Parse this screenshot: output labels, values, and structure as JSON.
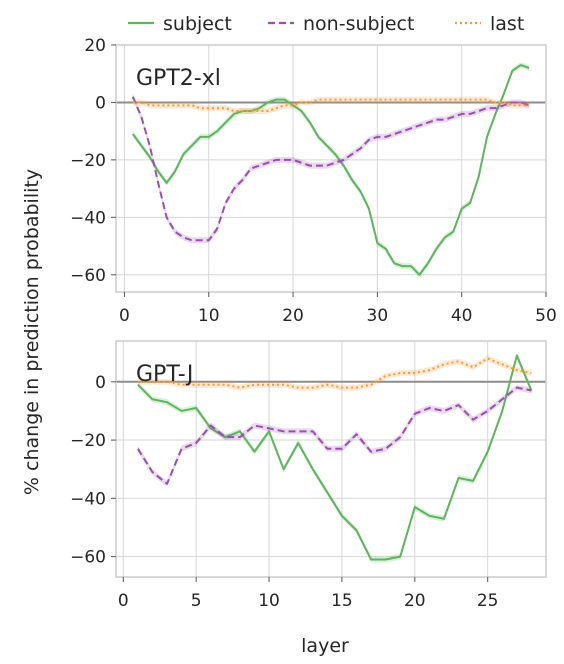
{
  "legend": {
    "entries": [
      {
        "label": "subject",
        "color": "#5db55d",
        "dash": "solid"
      },
      {
        "label": "non-subject",
        "color": "#9b4fb0",
        "dash": "dashed"
      },
      {
        "label": "last",
        "color": "#f59a3c",
        "dash": "dotted"
      }
    ],
    "placement": "top-center"
  },
  "ylabel": "% change in prediction probability",
  "xlabel": "layer",
  "chart_data": [
    {
      "type": "line",
      "title": "GPT2-xl",
      "xlim": [
        -1,
        50
      ],
      "ylim": [
        -66,
        20
      ],
      "xticks": [
        0,
        10,
        20,
        30,
        40,
        50
      ],
      "yticks": [
        -60,
        -40,
        -20,
        0,
        20
      ],
      "grid": true,
      "series": [
        {
          "name": "subject",
          "x": [
            1,
            2,
            3,
            4,
            5,
            6,
            7,
            8,
            9,
            10,
            11,
            12,
            13,
            14,
            15,
            16,
            17,
            18,
            19,
            20,
            21,
            22,
            23,
            24,
            25,
            26,
            27,
            28,
            29,
            30,
            31,
            32,
            33,
            34,
            35,
            36,
            37,
            38,
            39,
            40,
            41,
            42,
            43,
            44,
            45,
            46,
            47,
            48
          ],
          "y": [
            -11,
            -15,
            -19,
            -24,
            -28,
            -24,
            -18,
            -15,
            -12,
            -12,
            -10,
            -7,
            -4,
            -3,
            -3,
            -2,
            0,
            1,
            1,
            -1,
            -3,
            -7,
            -12,
            -15,
            -18,
            -22,
            -27,
            -31,
            -37,
            -49,
            -51,
            -56,
            -57,
            -57,
            -60,
            -56,
            -51,
            -47,
            -45,
            -37,
            -35,
            -26,
            -12,
            -4,
            3,
            11,
            13,
            12
          ]
        },
        {
          "name": "non-subject",
          "x": [
            1,
            2,
            3,
            4,
            5,
            6,
            7,
            8,
            9,
            10,
            11,
            12,
            13,
            14,
            15,
            16,
            17,
            18,
            19,
            20,
            21,
            22,
            23,
            24,
            25,
            26,
            27,
            28,
            29,
            30,
            31,
            32,
            33,
            34,
            35,
            36,
            37,
            38,
            39,
            40,
            41,
            42,
            43,
            44,
            45,
            46,
            47,
            48
          ],
          "y": [
            2,
            -5,
            -15,
            -28,
            -40,
            -45,
            -47,
            -48,
            -48,
            -48,
            -44,
            -35,
            -30,
            -27,
            -23,
            -22,
            -21,
            -20,
            -20,
            -20,
            -21,
            -22,
            -22,
            -22,
            -21,
            -20,
            -18,
            -16,
            -13,
            -12,
            -12,
            -11,
            -10,
            -9,
            -8,
            -7,
            -6,
            -6,
            -5,
            -4,
            -4,
            -3,
            -2,
            -2,
            -1,
            0,
            0,
            -1
          ]
        },
        {
          "name": "last",
          "x": [
            1,
            2,
            3,
            4,
            5,
            6,
            7,
            8,
            9,
            10,
            11,
            12,
            13,
            14,
            15,
            16,
            17,
            18,
            19,
            20,
            21,
            22,
            23,
            24,
            25,
            26,
            27,
            28,
            29,
            30,
            31,
            32,
            33,
            34,
            35,
            36,
            37,
            38,
            39,
            40,
            41,
            42,
            43,
            44,
            45,
            46,
            47,
            48
          ],
          "y": [
            0,
            0,
            -1,
            -1,
            -1,
            -1,
            -1,
            -1,
            -2,
            -2,
            -2,
            -2,
            -3,
            -3,
            -3,
            -3,
            -3,
            -2,
            -1,
            -1,
            0,
            0,
            1,
            1,
            1,
            1,
            1,
            1,
            1,
            1,
            1,
            1,
            1,
            1,
            1,
            1,
            1,
            1,
            1,
            1,
            1,
            1,
            1,
            0,
            0,
            -1,
            -1,
            -1
          ]
        }
      ]
    },
    {
      "type": "line",
      "title": "GPT-J",
      "xlim": [
        -0.5,
        29
      ],
      "ylim": [
        -67,
        14
      ],
      "xticks": [
        0,
        5,
        10,
        15,
        20,
        25
      ],
      "yticks": [
        -60,
        -40,
        -20,
        0
      ],
      "grid": true,
      "series": [
        {
          "name": "subject",
          "x": [
            1,
            2,
            3,
            4,
            5,
            6,
            7,
            8,
            9,
            10,
            11,
            12,
            13,
            14,
            15,
            16,
            17,
            18,
            19,
            20,
            21,
            22,
            23,
            24,
            25,
            26,
            27,
            28
          ],
          "y": [
            -1,
            -6,
            -7,
            -10,
            -9,
            -16,
            -19,
            -17,
            -24,
            -17,
            -30,
            -21,
            -30,
            -38,
            -46,
            -51,
            -61,
            -61,
            -60,
            -43,
            -46,
            -47,
            -33,
            -34,
            -24,
            -10,
            9,
            -3
          ]
        },
        {
          "name": "non-subject",
          "x": [
            1,
            2,
            3,
            4,
            5,
            6,
            7,
            8,
            9,
            10,
            11,
            12,
            13,
            14,
            15,
            16,
            17,
            18,
            19,
            20,
            21,
            22,
            23,
            24,
            25,
            26,
            27,
            28
          ],
          "y": [
            -23,
            -31,
            -35,
            -23,
            -21,
            -15,
            -19,
            -19,
            -15,
            -16,
            -17,
            -17,
            -17,
            -23,
            -23,
            -18,
            -24,
            -23,
            -19,
            -11,
            -9,
            -10,
            -8,
            -13,
            -10,
            -6,
            -2,
            -3
          ]
        },
        {
          "name": "last",
          "x": [
            1,
            2,
            3,
            4,
            5,
            6,
            7,
            8,
            9,
            10,
            11,
            12,
            13,
            14,
            15,
            16,
            17,
            18,
            19,
            20,
            21,
            22,
            23,
            24,
            25,
            26,
            27,
            28
          ],
          "y": [
            0,
            0,
            0,
            -1,
            -1,
            -1,
            -1,
            -2,
            -1,
            -1,
            -1,
            -2,
            -2,
            -1,
            -2,
            -2,
            -1,
            2,
            3,
            3,
            4,
            6,
            7,
            5,
            8,
            6,
            4,
            3
          ]
        }
      ]
    }
  ]
}
